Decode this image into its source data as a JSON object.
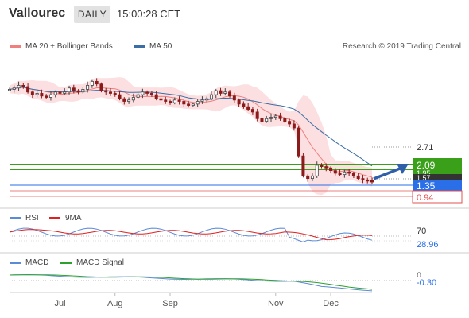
{
  "header": {
    "symbol": "Vallourec",
    "timeframe": "DAILY",
    "time": "15:00:28 CET"
  },
  "legend_main": [
    {
      "label": "MA 20 + Bollinger Bands",
      "color": "#f08080"
    },
    {
      "label": "MA 50",
      "color": "#3b6ea5"
    }
  ],
  "credit": "Research © 2019 Trading Central",
  "legend_rsi": [
    {
      "label": "RSI",
      "color": "#5b8bd6"
    },
    {
      "label": "9MA",
      "color": "#e02020"
    }
  ],
  "legend_macd": [
    {
      "label": "MACD",
      "color": "#5b8bd6"
    },
    {
      "label": "MACD Signal",
      "color": "#2ea02e"
    }
  ],
  "colors": {
    "resistance": "#3aa01a",
    "support": "#2a6fe8",
    "price_tag": "#333333",
    "low_tag": "#e05050",
    "candle_up": "#444444",
    "candle_down": "#8b1a1a"
  },
  "chart_data": [
    {
      "type": "candlestick",
      "title": "Vallourec",
      "x_ticks": [
        "Jul",
        "Aug",
        "Sep",
        "Nov",
        "Dec"
      ],
      "ylim": [
        0.75,
        6.1
      ],
      "levels": [
        {
          "label": "2.71",
          "value": 2.71,
          "style": "dotted-gray"
        },
        {
          "label": "2.09",
          "value": 2.09,
          "style": "resistance"
        },
        {
          "label": "1.95",
          "value": 1.95,
          "style": "resistance"
        },
        {
          "label": "1.57",
          "value": 1.57,
          "style": "current-price"
        },
        {
          "label": "1.35",
          "value": 1.35,
          "style": "support"
        },
        {
          "label": "0.94",
          "value": 0.94,
          "style": "low-tag"
        }
      ],
      "close_series": [
        5.05,
        5.1,
        5.2,
        5.15,
        4.95,
        4.85,
        4.9,
        4.8,
        4.75,
        4.85,
        4.95,
        4.9,
        4.95,
        5.1,
        5.0,
        4.95,
        5.05,
        5.2,
        5.35,
        5.25,
        5.0,
        4.95,
        4.9,
        4.85,
        4.7,
        4.6,
        4.65,
        4.75,
        4.85,
        4.95,
        4.9,
        4.85,
        4.7,
        4.65,
        4.6,
        4.55,
        4.65,
        4.6,
        4.5,
        4.45,
        4.5,
        4.6,
        4.65,
        4.7,
        4.85,
        5.0,
        4.9,
        4.95,
        4.8,
        4.65,
        4.5,
        4.4,
        4.3,
        4.2,
        3.95,
        3.85,
        3.95,
        4.0,
        4.05,
        3.95,
        3.85,
        3.75,
        3.6,
        2.55,
        1.8,
        1.7,
        1.8,
        2.2,
        2.15,
        2.1,
        2.0,
        1.9,
        1.85,
        1.95,
        1.9,
        1.8,
        1.7,
        1.65,
        1.62,
        1.57
      ]
    },
    {
      "type": "line",
      "title": "RSI",
      "ylim": [
        0,
        100
      ],
      "levels": [
        {
          "label": "70",
          "value": 70
        },
        {
          "label": "28.96",
          "value": 28.96
        }
      ],
      "series": [
        {
          "name": "RSI"
        },
        {
          "name": "9MA"
        }
      ]
    },
    {
      "type": "line",
      "title": "MACD",
      "levels": [
        {
          "label": "0",
          "value": 0
        },
        {
          "label": "-0.30",
          "value": -0.3
        }
      ],
      "series": [
        {
          "name": "MACD"
        },
        {
          "name": "MACD Signal"
        }
      ]
    }
  ]
}
